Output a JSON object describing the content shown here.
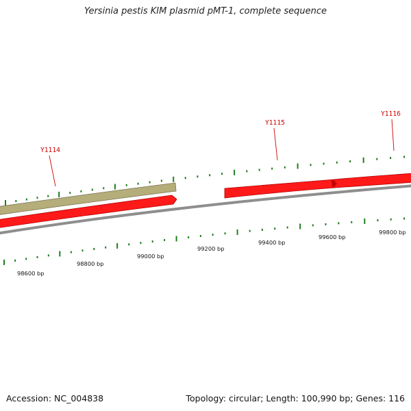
{
  "title": "Yersinia pestis KIM plasmid pMT-1, complete sequence",
  "footer": {
    "accession": "Accession: NC_004838",
    "summary": "Topology: circular; Length: 100,990 bp; Genes: 116"
  },
  "map": {
    "colors": {
      "forward_gene": "#ff1a1a",
      "reverse_gene": "#b5ad7a",
      "backbone": "#8e8e8e",
      "orf_ticks": "#1e7d1e",
      "scale_ticks": "#1e7d1e",
      "gene_label": "#cc0000"
    },
    "scale_labels": [
      "98600 bp",
      "98800 bp",
      "99000 bp",
      "99200 bp",
      "99400 bp",
      "99600 bp",
      "99800 bp"
    ],
    "gene_labels": [
      "Y1114",
      "Y1115",
      "Y1116"
    ]
  }
}
